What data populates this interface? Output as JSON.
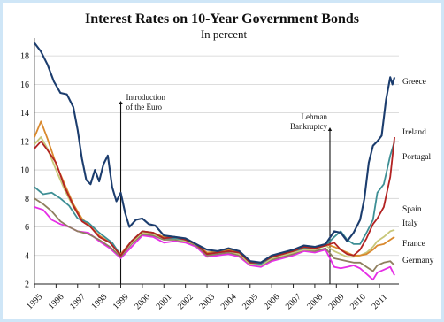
{
  "chart_data": {
    "type": "line",
    "title": "Interest Rates on 10-Year Government Bonds",
    "subtitle": "In percent",
    "ylim": [
      2,
      19
    ],
    "yticks": [
      2,
      4,
      6,
      8,
      10,
      12,
      14,
      16,
      18
    ],
    "xlim": [
      1995,
      2011.9
    ],
    "xticks": [
      "1995",
      "1996",
      "1997",
      "1998",
      "1999",
      "2000",
      "2001",
      "2002",
      "2003",
      "2004",
      "2005",
      "2006",
      "2007",
      "2008",
      "2009",
      "2010",
      "2011"
    ],
    "grid": "horizontal",
    "annotations": [
      {
        "lines": [
          "Introduction",
          "of the Euro"
        ],
        "x": 1999.0
      },
      {
        "lines": [
          "Lehman",
          "Bankruptcy"
        ],
        "x": 2008.7
      }
    ],
    "series": [
      {
        "name": "Greece",
        "color": "#1c3d6e",
        "points": [
          [
            1995.0,
            18.9
          ],
          [
            1995.3,
            18.3
          ],
          [
            1995.6,
            17.4
          ],
          [
            1995.9,
            16.2
          ],
          [
            1996.2,
            15.4
          ],
          [
            1996.5,
            15.3
          ],
          [
            1996.8,
            14.4
          ],
          [
            1997.0,
            12.8
          ],
          [
            1997.2,
            10.8
          ],
          [
            1997.4,
            9.3
          ],
          [
            1997.6,
            9.0
          ],
          [
            1997.8,
            10.0
          ],
          [
            1998.0,
            9.2
          ],
          [
            1998.2,
            10.4
          ],
          [
            1998.4,
            11.0
          ],
          [
            1998.6,
            8.8
          ],
          [
            1998.8,
            7.8
          ],
          [
            1999.0,
            8.4
          ],
          [
            1999.2,
            7.0
          ],
          [
            1999.4,
            6.0
          ],
          [
            1999.7,
            6.5
          ],
          [
            2000.0,
            6.6
          ],
          [
            2000.3,
            6.2
          ],
          [
            2000.6,
            6.1
          ],
          [
            2001.0,
            5.4
          ],
          [
            2001.5,
            5.3
          ],
          [
            2002.0,
            5.2
          ],
          [
            2002.5,
            4.8
          ],
          [
            2003.0,
            4.4
          ],
          [
            2003.5,
            4.3
          ],
          [
            2004.0,
            4.5
          ],
          [
            2004.5,
            4.3
          ],
          [
            2005.0,
            3.6
          ],
          [
            2005.5,
            3.5
          ],
          [
            2006.0,
            4.0
          ],
          [
            2006.5,
            4.2
          ],
          [
            2007.0,
            4.4
          ],
          [
            2007.5,
            4.7
          ],
          [
            2008.0,
            4.6
          ],
          [
            2008.5,
            4.8
          ],
          [
            2008.9,
            5.7
          ],
          [
            2009.2,
            5.6
          ],
          [
            2009.5,
            5.0
          ],
          [
            2009.8,
            5.6
          ],
          [
            2010.1,
            6.5
          ],
          [
            2010.3,
            8.0
          ],
          [
            2010.5,
            10.5
          ],
          [
            2010.7,
            11.7
          ],
          [
            2010.9,
            12.0
          ],
          [
            2011.1,
            12.4
          ],
          [
            2011.3,
            14.9
          ],
          [
            2011.5,
            16.5
          ],
          [
            2011.6,
            16.0
          ],
          [
            2011.7,
            16.5
          ]
        ]
      },
      {
        "name": "Ireland",
        "color": "#3e8f95",
        "points": [
          [
            1995.0,
            8.8
          ],
          [
            1995.4,
            8.3
          ],
          [
            1995.8,
            8.4
          ],
          [
            1996.2,
            8.0
          ],
          [
            1996.6,
            7.5
          ],
          [
            1997.0,
            6.6
          ],
          [
            1997.5,
            6.3
          ],
          [
            1998.0,
            5.6
          ],
          [
            1998.6,
            4.9
          ],
          [
            1999.0,
            4.0
          ],
          [
            1999.5,
            5.0
          ],
          [
            2000.0,
            5.7
          ],
          [
            2000.5,
            5.6
          ],
          [
            2001.0,
            5.2
          ],
          [
            2001.5,
            5.2
          ],
          [
            2002.0,
            5.1
          ],
          [
            2002.5,
            4.8
          ],
          [
            2003.0,
            4.1
          ],
          [
            2003.5,
            4.2
          ],
          [
            2004.0,
            4.3
          ],
          [
            2004.5,
            4.2
          ],
          [
            2005.0,
            3.5
          ],
          [
            2005.5,
            3.4
          ],
          [
            2006.0,
            3.9
          ],
          [
            2006.5,
            4.1
          ],
          [
            2007.0,
            4.3
          ],
          [
            2007.5,
            4.5
          ],
          [
            2008.0,
            4.5
          ],
          [
            2008.5,
            4.7
          ],
          [
            2008.9,
            5.3
          ],
          [
            2009.2,
            5.7
          ],
          [
            2009.5,
            5.1
          ],
          [
            2009.8,
            4.8
          ],
          [
            2010.1,
            4.8
          ],
          [
            2010.4,
            5.6
          ],
          [
            2010.7,
            6.5
          ],
          [
            2010.9,
            8.4
          ],
          [
            2011.2,
            9.0
          ],
          [
            2011.5,
            11.0
          ],
          [
            2011.7,
            12.0
          ]
        ]
      },
      {
        "name": "Portugal",
        "color": "#b22222",
        "points": [
          [
            1995.0,
            11.5
          ],
          [
            1995.3,
            12.0
          ],
          [
            1995.6,
            11.4
          ],
          [
            1996.0,
            10.5
          ],
          [
            1996.4,
            8.8
          ],
          [
            1996.8,
            7.5
          ],
          [
            1997.2,
            6.4
          ],
          [
            1997.6,
            6.0
          ],
          [
            1998.0,
            5.3
          ],
          [
            1998.5,
            4.9
          ],
          [
            1999.0,
            4.0
          ],
          [
            1999.5,
            5.0
          ],
          [
            2000.0,
            5.7
          ],
          [
            2000.5,
            5.6
          ],
          [
            2001.0,
            5.2
          ],
          [
            2001.5,
            5.3
          ],
          [
            2002.0,
            5.1
          ],
          [
            2002.5,
            4.8
          ],
          [
            2003.0,
            4.1
          ],
          [
            2003.5,
            4.2
          ],
          [
            2004.0,
            4.3
          ],
          [
            2004.5,
            4.2
          ],
          [
            2005.0,
            3.5
          ],
          [
            2005.5,
            3.5
          ],
          [
            2006.0,
            3.9
          ],
          [
            2006.5,
            4.1
          ],
          [
            2007.0,
            4.3
          ],
          [
            2007.5,
            4.6
          ],
          [
            2008.0,
            4.5
          ],
          [
            2008.5,
            4.7
          ],
          [
            2008.9,
            4.9
          ],
          [
            2009.2,
            4.4
          ],
          [
            2009.5,
            4.1
          ],
          [
            2009.8,
            4.0
          ],
          [
            2010.1,
            4.4
          ],
          [
            2010.4,
            5.2
          ],
          [
            2010.7,
            6.2
          ],
          [
            2010.9,
            6.6
          ],
          [
            2011.2,
            7.4
          ],
          [
            2011.5,
            9.5
          ],
          [
            2011.7,
            12.3
          ]
        ]
      },
      {
        "name": "Spain",
        "color": "#c8c77a",
        "points": [
          [
            1995.0,
            11.8
          ],
          [
            1995.3,
            12.3
          ],
          [
            1995.6,
            11.5
          ],
          [
            1996.0,
            10.0
          ],
          [
            1996.4,
            8.6
          ],
          [
            1996.8,
            7.4
          ],
          [
            1997.2,
            6.5
          ],
          [
            1997.6,
            6.0
          ],
          [
            1998.0,
            5.4
          ],
          [
            1998.5,
            4.9
          ],
          [
            1999.0,
            4.0
          ],
          [
            1999.5,
            4.9
          ],
          [
            2000.0,
            5.6
          ],
          [
            2000.5,
            5.5
          ],
          [
            2001.0,
            5.2
          ],
          [
            2001.5,
            5.2
          ],
          [
            2002.0,
            5.0
          ],
          [
            2002.5,
            4.8
          ],
          [
            2003.0,
            4.1
          ],
          [
            2003.5,
            4.2
          ],
          [
            2004.0,
            4.3
          ],
          [
            2004.5,
            4.1
          ],
          [
            2005.0,
            3.4
          ],
          [
            2005.5,
            3.3
          ],
          [
            2006.0,
            3.8
          ],
          [
            2006.5,
            4.0
          ],
          [
            2007.0,
            4.2
          ],
          [
            2007.5,
            4.4
          ],
          [
            2008.0,
            4.4
          ],
          [
            2008.5,
            4.7
          ],
          [
            2008.9,
            4.3
          ],
          [
            2009.2,
            4.1
          ],
          [
            2009.5,
            3.9
          ],
          [
            2009.8,
            3.9
          ],
          [
            2010.1,
            4.0
          ],
          [
            2010.4,
            4.2
          ],
          [
            2010.7,
            4.6
          ],
          [
            2010.9,
            5.0
          ],
          [
            2011.2,
            5.3
          ],
          [
            2011.5,
            5.7
          ],
          [
            2011.7,
            5.8
          ]
        ]
      },
      {
        "name": "Italy",
        "color": "#d9892e",
        "points": [
          [
            1995.0,
            12.3
          ],
          [
            1995.3,
            13.4
          ],
          [
            1995.6,
            12.2
          ],
          [
            1996.0,
            10.4
          ],
          [
            1996.4,
            9.0
          ],
          [
            1996.8,
            7.6
          ],
          [
            1997.2,
            6.6
          ],
          [
            1997.6,
            6.0
          ],
          [
            1998.0,
            5.4
          ],
          [
            1998.5,
            4.9
          ],
          [
            1999.0,
            4.1
          ],
          [
            1999.5,
            5.0
          ],
          [
            2000.0,
            5.7
          ],
          [
            2000.5,
            5.6
          ],
          [
            2001.0,
            5.3
          ],
          [
            2001.5,
            5.3
          ],
          [
            2002.0,
            5.1
          ],
          [
            2002.5,
            4.8
          ],
          [
            2003.0,
            4.2
          ],
          [
            2003.5,
            4.3
          ],
          [
            2004.0,
            4.4
          ],
          [
            2004.5,
            4.2
          ],
          [
            2005.0,
            3.5
          ],
          [
            2005.5,
            3.5
          ],
          [
            2006.0,
            3.9
          ],
          [
            2006.5,
            4.1
          ],
          [
            2007.0,
            4.4
          ],
          [
            2007.5,
            4.6
          ],
          [
            2008.0,
            4.6
          ],
          [
            2008.5,
            4.8
          ],
          [
            2008.9,
            4.6
          ],
          [
            2009.2,
            4.4
          ],
          [
            2009.5,
            4.2
          ],
          [
            2009.8,
            4.0
          ],
          [
            2010.1,
            4.0
          ],
          [
            2010.4,
            4.1
          ],
          [
            2010.7,
            4.4
          ],
          [
            2010.9,
            4.7
          ],
          [
            2011.2,
            4.8
          ],
          [
            2011.5,
            5.1
          ],
          [
            2011.7,
            5.3
          ]
        ]
      },
      {
        "name": "France",
        "color": "#8f7f5f",
        "points": [
          [
            1995.0,
            8.0
          ],
          [
            1995.4,
            7.6
          ],
          [
            1995.8,
            7.1
          ],
          [
            1996.2,
            6.4
          ],
          [
            1996.6,
            6.0
          ],
          [
            1997.0,
            5.7
          ],
          [
            1997.5,
            5.5
          ],
          [
            1998.0,
            5.1
          ],
          [
            1998.5,
            4.6
          ],
          [
            1999.0,
            3.9
          ],
          [
            1999.5,
            4.8
          ],
          [
            2000.0,
            5.5
          ],
          [
            2000.5,
            5.4
          ],
          [
            2001.0,
            5.1
          ],
          [
            2001.5,
            5.1
          ],
          [
            2002.0,
            5.0
          ],
          [
            2002.5,
            4.7
          ],
          [
            2003.0,
            4.0
          ],
          [
            2003.5,
            4.1
          ],
          [
            2004.0,
            4.2
          ],
          [
            2004.5,
            4.0
          ],
          [
            2005.0,
            3.4
          ],
          [
            2005.5,
            3.3
          ],
          [
            2006.0,
            3.7
          ],
          [
            2006.5,
            3.9
          ],
          [
            2007.0,
            4.1
          ],
          [
            2007.5,
            4.4
          ],
          [
            2008.0,
            4.3
          ],
          [
            2008.5,
            4.5
          ],
          [
            2008.9,
            3.8
          ],
          [
            2009.2,
            3.7
          ],
          [
            2009.5,
            3.6
          ],
          [
            2009.8,
            3.5
          ],
          [
            2010.1,
            3.5
          ],
          [
            2010.4,
            3.2
          ],
          [
            2010.7,
            2.9
          ],
          [
            2010.9,
            3.3
          ],
          [
            2011.2,
            3.5
          ],
          [
            2011.5,
            3.6
          ],
          [
            2011.7,
            3.3
          ]
        ]
      },
      {
        "name": "Germany",
        "color": "#e62ee6",
        "points": [
          [
            1995.0,
            7.4
          ],
          [
            1995.4,
            7.2
          ],
          [
            1995.8,
            6.5
          ],
          [
            1996.2,
            6.2
          ],
          [
            1996.6,
            6.0
          ],
          [
            1997.0,
            5.7
          ],
          [
            1997.5,
            5.6
          ],
          [
            1998.0,
            5.0
          ],
          [
            1998.5,
            4.5
          ],
          [
            1999.0,
            3.8
          ],
          [
            1999.5,
            4.6
          ],
          [
            2000.0,
            5.4
          ],
          [
            2000.5,
            5.3
          ],
          [
            2001.0,
            4.9
          ],
          [
            2001.5,
            5.0
          ],
          [
            2002.0,
            4.9
          ],
          [
            2002.5,
            4.6
          ],
          [
            2003.0,
            3.9
          ],
          [
            2003.5,
            4.0
          ],
          [
            2004.0,
            4.1
          ],
          [
            2004.5,
            3.9
          ],
          [
            2005.0,
            3.3
          ],
          [
            2005.5,
            3.2
          ],
          [
            2006.0,
            3.6
          ],
          [
            2006.5,
            3.8
          ],
          [
            2007.0,
            4.0
          ],
          [
            2007.5,
            4.3
          ],
          [
            2008.0,
            4.2
          ],
          [
            2008.5,
            4.4
          ],
          [
            2008.9,
            3.2
          ],
          [
            2009.2,
            3.1
          ],
          [
            2009.5,
            3.2
          ],
          [
            2009.8,
            3.3
          ],
          [
            2010.1,
            3.1
          ],
          [
            2010.4,
            2.7
          ],
          [
            2010.7,
            2.3
          ],
          [
            2010.9,
            2.8
          ],
          [
            2011.2,
            3.0
          ],
          [
            2011.5,
            3.2
          ],
          [
            2011.7,
            2.6
          ]
        ]
      }
    ]
  }
}
